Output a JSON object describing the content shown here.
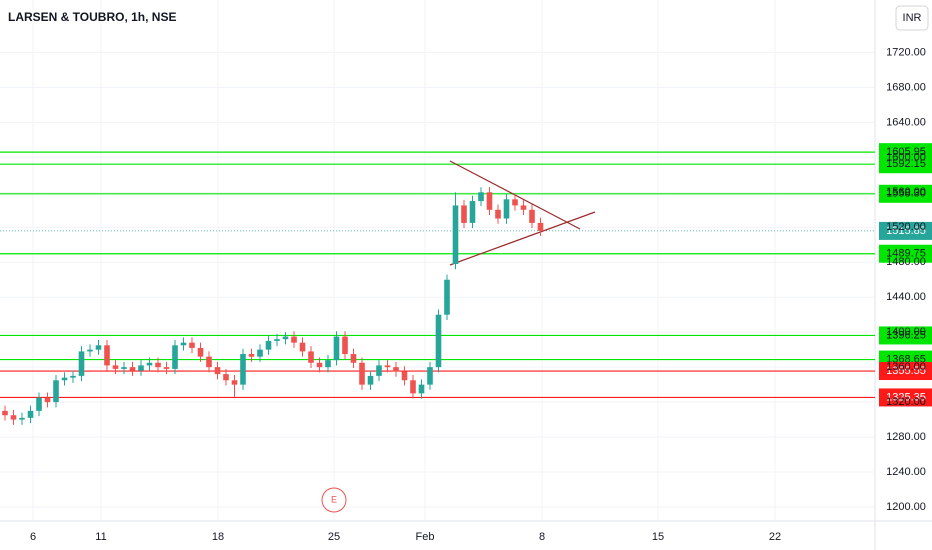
{
  "chart_data": {
    "type": "candlestick",
    "title": "LARSEN & TOUBRO, 1h, NSE",
    "currency": "INR",
    "event_marker": "E",
    "up_color": "#26a69a",
    "down_color": "#ef5350",
    "ylim": [
      1184,
      1780
    ],
    "yticks": [
      {
        "value": 1200,
        "label": "1200.00"
      },
      {
        "value": 1240,
        "label": "1240.00"
      },
      {
        "value": 1280,
        "label": "1280.00"
      },
      {
        "value": 1320,
        "label": "1320.00"
      },
      {
        "value": 1360,
        "label": "1360.00"
      },
      {
        "value": 1400,
        "label": "1400.00"
      },
      {
        "value": 1440,
        "label": "1440.00"
      },
      {
        "value": 1480,
        "label": "1480.00"
      },
      {
        "value": 1520,
        "label": "1520.00"
      },
      {
        "value": 1560,
        "label": "1560.00"
      },
      {
        "value": 1600,
        "label": "1600.00"
      },
      {
        "value": 1640,
        "label": "1640.00"
      },
      {
        "value": 1680,
        "label": "1680.00"
      },
      {
        "value": 1720,
        "label": "1720.00"
      }
    ],
    "x_labels": [
      "6",
      "11",
      "18",
      "25",
      "Feb",
      "8",
      "15",
      "22"
    ],
    "open": [
      1310,
      1305,
      1300,
      1302,
      1310,
      1325,
      1320,
      1345,
      1348,
      1350,
      1378,
      1380,
      1385,
      1362,
      1358,
      1360,
      1356,
      1362,
      1365,
      1360,
      1358,
      1385,
      1388,
      1382,
      1372,
      1360,
      1352,
      1345,
      1340,
      1375,
      1372,
      1380,
      1390,
      1392,
      1395,
      1388,
      1378,
      1365,
      1360,
      1368,
      1395,
      1375,
      1365,
      1340,
      1350,
      1362,
      1360,
      1355,
      1345,
      1330,
      1340,
      1360,
      1420,
      1478,
      1545,
      1525,
      1550,
      1560,
      1540,
      1530,
      1552,
      1545,
      1540,
      1525
    ],
    "high": [
      1316,
      1311,
      1308,
      1316,
      1331,
      1331,
      1351,
      1354,
      1356,
      1384,
      1386,
      1391,
      1391,
      1368,
      1366,
      1366,
      1368,
      1371,
      1371,
      1366,
      1391,
      1394,
      1394,
      1388,
      1378,
      1366,
      1358,
      1351,
      1381,
      1381,
      1386,
      1396,
      1398,
      1400,
      1401,
      1394,
      1384,
      1371,
      1374,
      1401,
      1401,
      1381,
      1371,
      1356,
      1368,
      1368,
      1366,
      1361,
      1351,
      1346,
      1366,
      1426,
      1466,
      1560,
      1551,
      1556,
      1566,
      1566,
      1546,
      1558,
      1558,
      1551,
      1546,
      1531
    ],
    "low": [
      1299,
      1294,
      1294,
      1296,
      1304,
      1314,
      1314,
      1339,
      1342,
      1344,
      1372,
      1374,
      1356,
      1352,
      1352,
      1350,
      1350,
      1356,
      1354,
      1352,
      1352,
      1379,
      1376,
      1366,
      1354,
      1346,
      1339,
      1326,
      1334,
      1366,
      1366,
      1374,
      1384,
      1386,
      1382,
      1372,
      1359,
      1354,
      1354,
      1362,
      1369,
      1359,
      1334,
      1334,
      1344,
      1354,
      1349,
      1339,
      1324,
      1324,
      1334,
      1354,
      1414,
      1472,
      1519,
      1519,
      1544,
      1534,
      1524,
      1524,
      1539,
      1534,
      1519,
      1510
    ],
    "close": [
      1305,
      1300,
      1302,
      1310,
      1325,
      1320,
      1345,
      1348,
      1350,
      1378,
      1380,
      1385,
      1362,
      1358,
      1360,
      1356,
      1362,
      1365,
      1360,
      1358,
      1385,
      1388,
      1382,
      1372,
      1360,
      1352,
      1345,
      1340,
      1375,
      1372,
      1380,
      1390,
      1392,
      1395,
      1388,
      1378,
      1365,
      1360,
      1368,
      1395,
      1375,
      1365,
      1340,
      1350,
      1362,
      1360,
      1355,
      1345,
      1330,
      1340,
      1360,
      1420,
      1460,
      1545,
      1525,
      1550,
      1560,
      1540,
      1530,
      1552,
      1545,
      1540,
      1525,
      1515.85
    ],
    "levels": [
      {
        "value": 1605.95,
        "label": "1605.95",
        "color": "#00e600"
      },
      {
        "value": 1592.15,
        "label": "1592.15",
        "color": "#00e600"
      },
      {
        "value": 1558.3,
        "label": "1558.30",
        "color": "#00e600"
      },
      {
        "value": 1515.85,
        "label": "1515.85",
        "color": "#26a69a"
      },
      {
        "value": 1489.75,
        "label": "1489.75",
        "color": "#00e600"
      },
      {
        "value": 1396.25,
        "label": "1396.25",
        "color": "#00e600"
      },
      {
        "value": 1368.65,
        "label": "1368.65",
        "color": "#00e600"
      },
      {
        "value": 1355.55,
        "label": "1355.55",
        "color": "#ff1a1a"
      },
      {
        "value": 1325.35,
        "label": "1325.35",
        "color": "#ff1a1a"
      }
    ]
  }
}
